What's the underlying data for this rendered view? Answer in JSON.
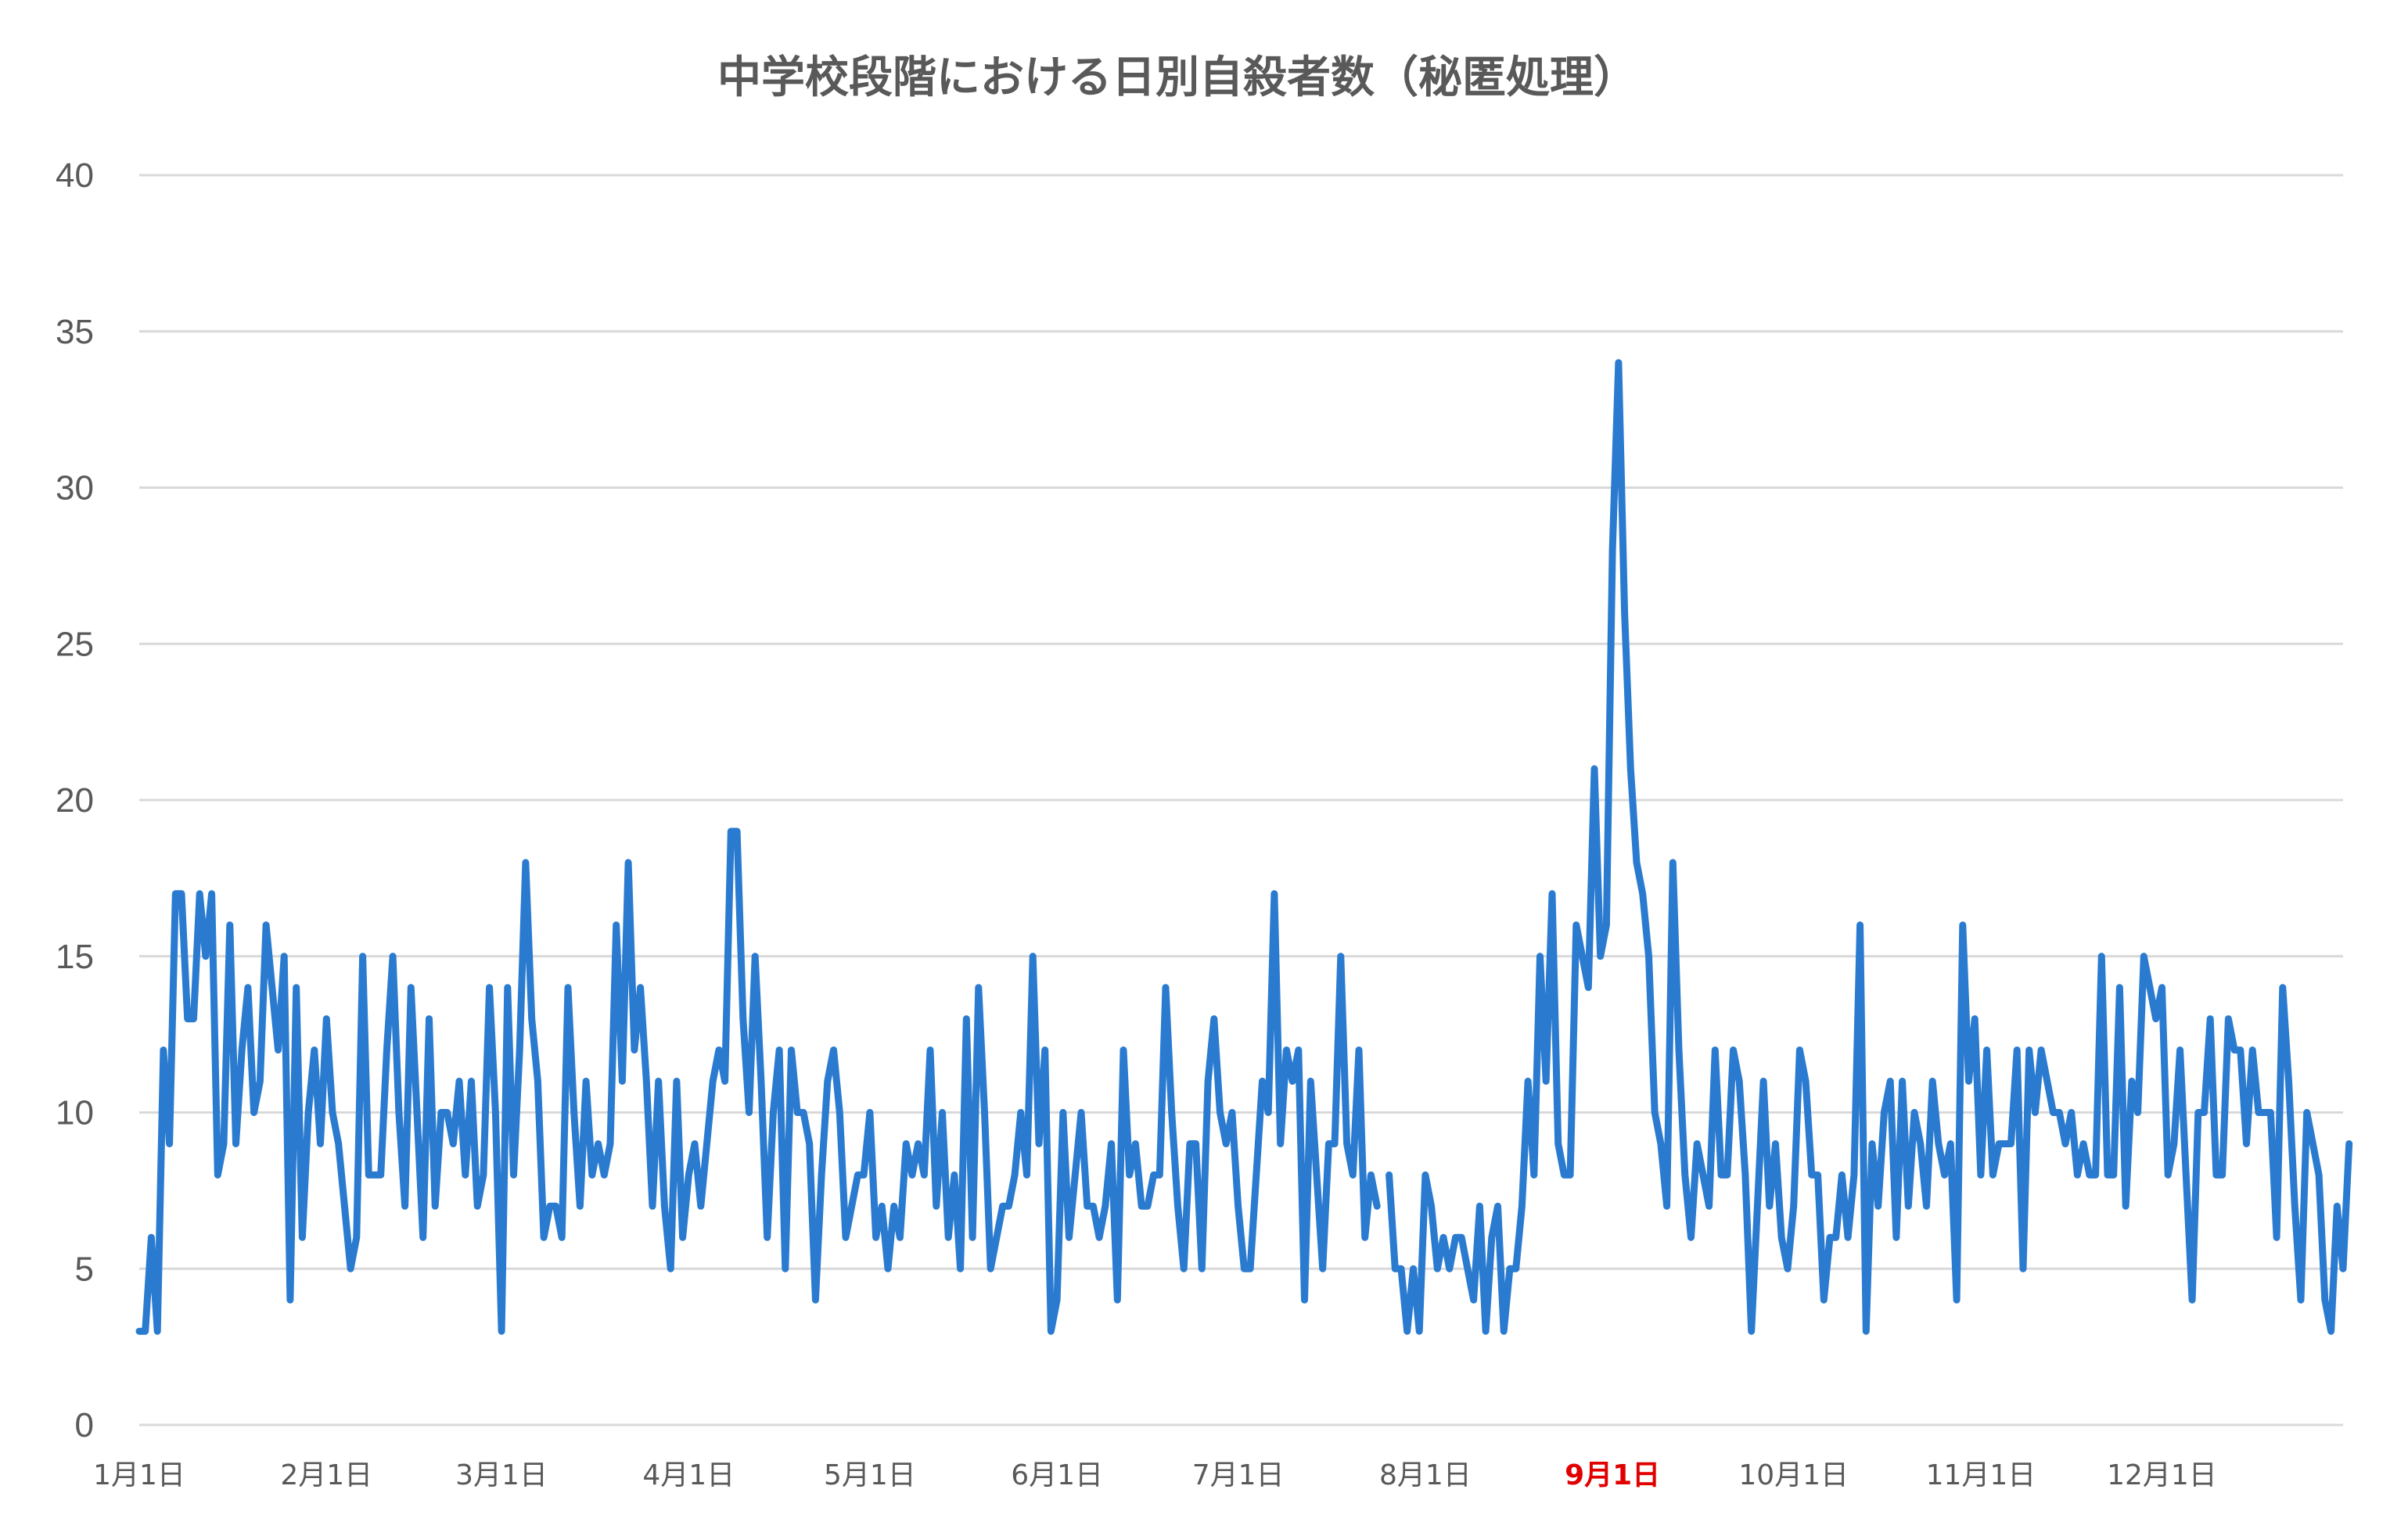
{
  "chart_data": {
    "type": "line",
    "title": "中学校段階における日別自殺者数（秘匿処理）",
    "xlabel": "",
    "ylabel": "",
    "ylim": [
      0,
      40
    ],
    "yticks": [
      0,
      5,
      10,
      15,
      20,
      25,
      30,
      35,
      40
    ],
    "grid": true,
    "x_range_days": [
      1,
      366
    ],
    "xticks": [
      {
        "label": "1月1日",
        "day": 1,
        "highlight": false
      },
      {
        "label": "2月1日",
        "day": 32,
        "highlight": false
      },
      {
        "label": "3月1日",
        "day": 61,
        "highlight": false
      },
      {
        "label": "4月1日",
        "day": 92,
        "highlight": false
      },
      {
        "label": "5月1日",
        "day": 122,
        "highlight": false
      },
      {
        "label": "6月1日",
        "day": 153,
        "highlight": false
      },
      {
        "label": "7月1日",
        "day": 183,
        "highlight": false
      },
      {
        "label": "8月1日",
        "day": 214,
        "highlight": false
      },
      {
        "label": "9月1日",
        "day": 245,
        "highlight": true
      },
      {
        "label": "10月1日",
        "day": 275,
        "highlight": false
      },
      {
        "label": "11月1日",
        "day": 306,
        "highlight": false
      },
      {
        "label": "12月1日",
        "day": 336,
        "highlight": false
      }
    ],
    "series": [
      {
        "name": "",
        "color": "#2a7bd0",
        "values": [
          3,
          3,
          6,
          3,
          12,
          9,
          17,
          17,
          13,
          13,
          17,
          15,
          17,
          8,
          9,
          16,
          9,
          12,
          14,
          10,
          11,
          16,
          14,
          12,
          15,
          4,
          14,
          6,
          10,
          12,
          9,
          13,
          10,
          9,
          7,
          5,
          6,
          15,
          8,
          8,
          8,
          12,
          15,
          10,
          7,
          14,
          10,
          6,
          13,
          7,
          10,
          10,
          9,
          11,
          8,
          11,
          7,
          8,
          14,
          10,
          3,
          14,
          8,
          12,
          18,
          13,
          11,
          6,
          7,
          7,
          6,
          14,
          10,
          7,
          11,
          8,
          9,
          8,
          9,
          16,
          11,
          18,
          12,
          14,
          11,
          7,
          11,
          7,
          5,
          11,
          6,
          8,
          9,
          7,
          9,
          11,
          12,
          11,
          19,
          19,
          13,
          10,
          15,
          11,
          6,
          10,
          12,
          5,
          12,
          10,
          10,
          9,
          4,
          8,
          11,
          12,
          10,
          6,
          7,
          8,
          8,
          10,
          6,
          7,
          5,
          7,
          6,
          9,
          8,
          9,
          8,
          12,
          7,
          10,
          6,
          8,
          5,
          13,
          6,
          14,
          10,
          5,
          6,
          7,
          7,
          8,
          10,
          8,
          15,
          9,
          12,
          3,
          4,
          10,
          6,
          8,
          10,
          7,
          7,
          6,
          7,
          9,
          4,
          12,
          8,
          9,
          7,
          7,
          8,
          8,
          14,
          10,
          7,
          5,
          9,
          9,
          5,
          11,
          13,
          10,
          9,
          10,
          7,
          5,
          5,
          8,
          11,
          10,
          17,
          9,
          12,
          11,
          12,
          4,
          11,
          8,
          5,
          9,
          9,
          15,
          9,
          8,
          12,
          6,
          8,
          7,
          null,
          8,
          5,
          5,
          3,
          5,
          3,
          8,
          7,
          5,
          6,
          5,
          6,
          6,
          5,
          4,
          7,
          3,
          6,
          7,
          3,
          5,
          5,
          7,
          11,
          8,
          15,
          11,
          17,
          9,
          8,
          8,
          16,
          15,
          14,
          21,
          15,
          16,
          28,
          34,
          26,
          21,
          18,
          17,
          15,
          10,
          9,
          7,
          18,
          12,
          8,
          6,
          9,
          8,
          7,
          12,
          8,
          8,
          12,
          11,
          8,
          3,
          7,
          11,
          7,
          9,
          6,
          5,
          7,
          12,
          11,
          8,
          8,
          4,
          6,
          6,
          8,
          6,
          8,
          16,
          3,
          9,
          7,
          10,
          11,
          6,
          11,
          7,
          10,
          9,
          7,
          11,
          9,
          8,
          9,
          4,
          16,
          11,
          13,
          8,
          12,
          8,
          9,
          9,
          9,
          12,
          5,
          12,
          10,
          12,
          11,
          10,
          10,
          9,
          10,
          8,
          9,
          8,
          8,
          15,
          8,
          8,
          14,
          7,
          11,
          10,
          15,
          14,
          13,
          14,
          8,
          9,
          12,
          8,
          4,
          10,
          10,
          13,
          8,
          8,
          13,
          12,
          12,
          9,
          12,
          10,
          10,
          10,
          6,
          14,
          11,
          7,
          4,
          10,
          9,
          8,
          4,
          3,
          7,
          5,
          9
        ]
      }
    ]
  }
}
